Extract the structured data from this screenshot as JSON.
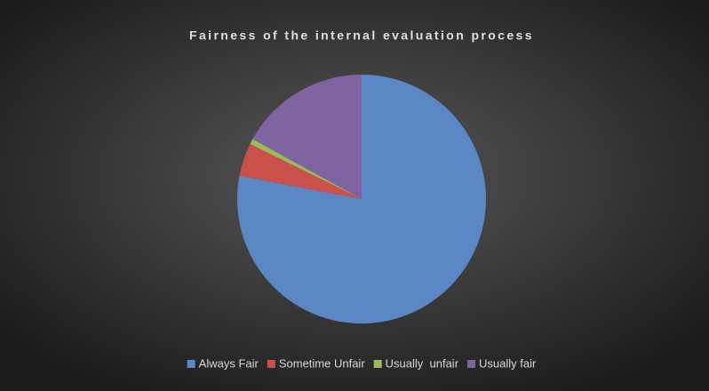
{
  "chart_data": {
    "type": "pie",
    "title": "Fairness of the internal evaluation process",
    "categories": [
      "Always Fair",
      "Sometime Unfair",
      "Usually  unfair",
      "Usually fair"
    ],
    "values": [
      78,
      4.3,
      0.7,
      17
    ],
    "colors": [
      "#5b87c5",
      "#c9504b",
      "#9bbb59",
      "#8064a2"
    ],
    "legend": "bottom"
  }
}
